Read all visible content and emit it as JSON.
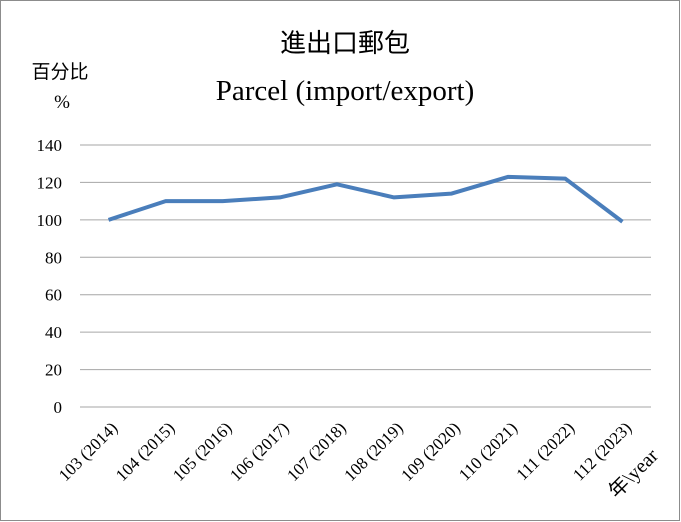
{
  "chart_data": {
    "type": "line",
    "title": "進出口郵包",
    "subtitle": "Parcel (import/export)",
    "y_label": "百分比",
    "y_unit": "%",
    "x_label": "年\\year",
    "categories": [
      "103 (2014)",
      "104 (2015)",
      "105 (2016)",
      "106 (2017)",
      "107 (2018)",
      "108 (2019)",
      "109 (2020)",
      "110 (2021)",
      "111 (2022)",
      "112 (2023)"
    ],
    "values": [
      100,
      110,
      110,
      112,
      119,
      112,
      114,
      123,
      122,
      99
    ],
    "color": "#4a7ebb",
    "ylim": [
      0,
      140
    ],
    "yticks": [
      0,
      20,
      40,
      60,
      80,
      100,
      120,
      140
    ],
    "grid": true
  }
}
